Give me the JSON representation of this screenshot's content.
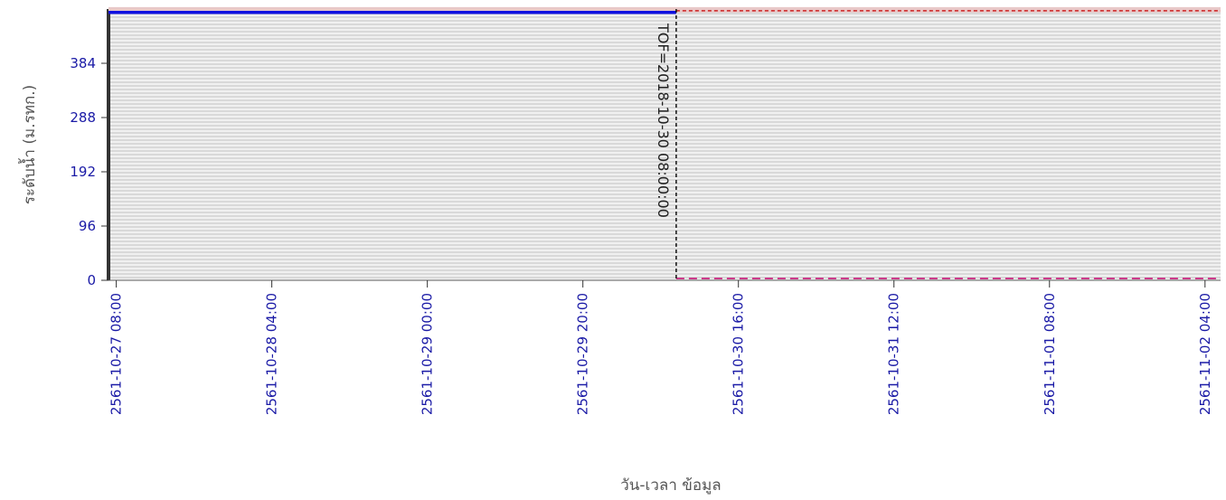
{
  "chart_data": {
    "type": "line",
    "xlabel": "วัน-เวลา ข้อมูล",
    "ylabel": "ระดับน้ำ (ม.รทก.)",
    "ylim": [
      0,
      480
    ],
    "yticks": [
      0,
      96,
      192,
      288,
      384
    ],
    "xlim": [
      "2561-10-27 07:00",
      "2561-11-02 06:00"
    ],
    "x_ticks": [
      "2561-10-27 08:00",
      "2561-10-28 04:00",
      "2561-10-29 00:00",
      "2561-10-29 20:00",
      "2561-10-30 16:00",
      "2561-10-31 12:00",
      "2561-11-01 08:00",
      "2561-11-02 04:00"
    ],
    "grid": true,
    "series": [
      {
        "role": "observed",
        "x": [
          "2561-10-27 07:00",
          "2561-10-30 08:00"
        ],
        "y": [
          474,
          474
        ]
      }
    ],
    "reference_lines": {
      "top": 477,
      "bottom": 0
    },
    "marker": {
      "x": "2561-10-30 08:00",
      "label": "TOF=2018-10-30 08:00:00"
    }
  },
  "colors": {
    "plot_bg": "#d9d9d9",
    "grid": "#ffffff",
    "observed": "#1010e0",
    "top_line": "#cc2222",
    "bottom_line": "#cc3a8a",
    "marker": "#111111",
    "tick_text": "#1a1aa6",
    "axis_text": "#555555"
  }
}
